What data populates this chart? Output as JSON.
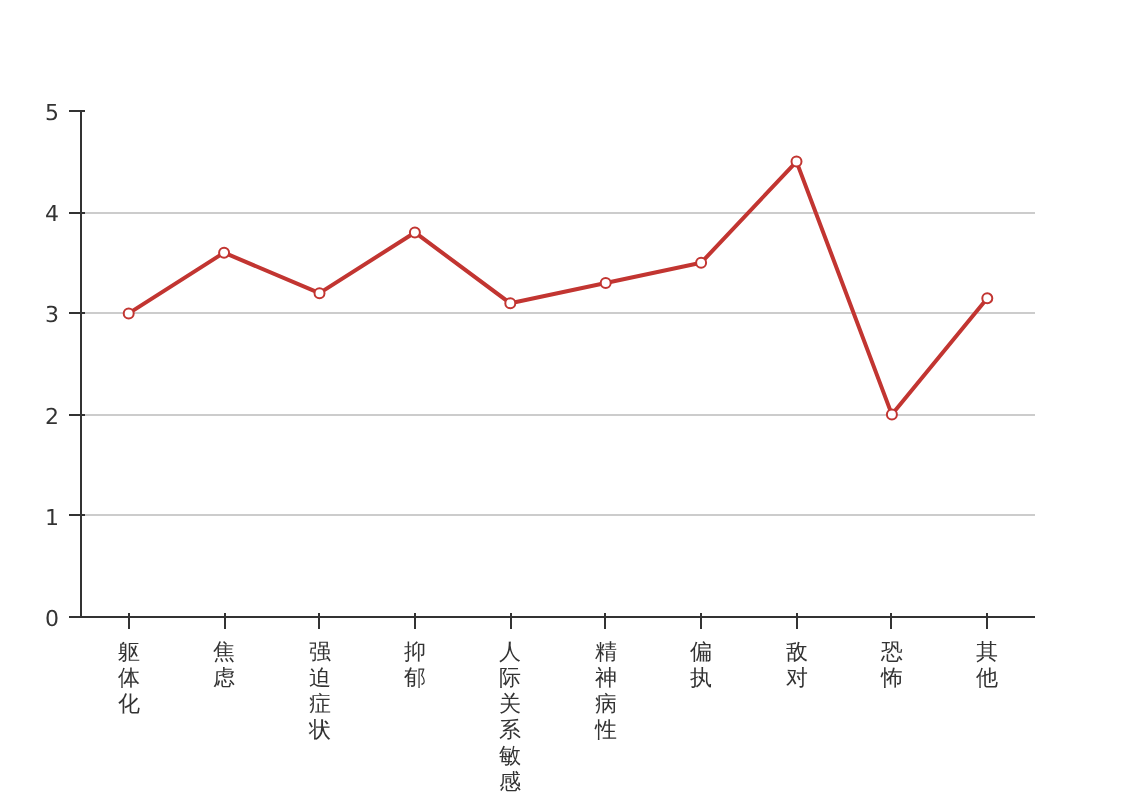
{
  "chart_data": {
    "type": "line",
    "categories": [
      "躯体化",
      "焦虑",
      "强迫症状",
      "抑郁",
      "人际关系敏感",
      "精神病性",
      "偏执",
      "敌对",
      "恐怖",
      "其他"
    ],
    "series": [
      {
        "color": "#c23531",
        "values": [
          3.0,
          3.6,
          3.2,
          3.8,
          3.1,
          3.3,
          3.5,
          4.5,
          2.0,
          3.15
        ]
      }
    ],
    "ylim": [
      0,
      5
    ],
    "yticks": [
      0,
      1,
      2,
      3,
      4,
      5
    ],
    "grid": "y",
    "marker": "circle",
    "line_style": "solid"
  }
}
